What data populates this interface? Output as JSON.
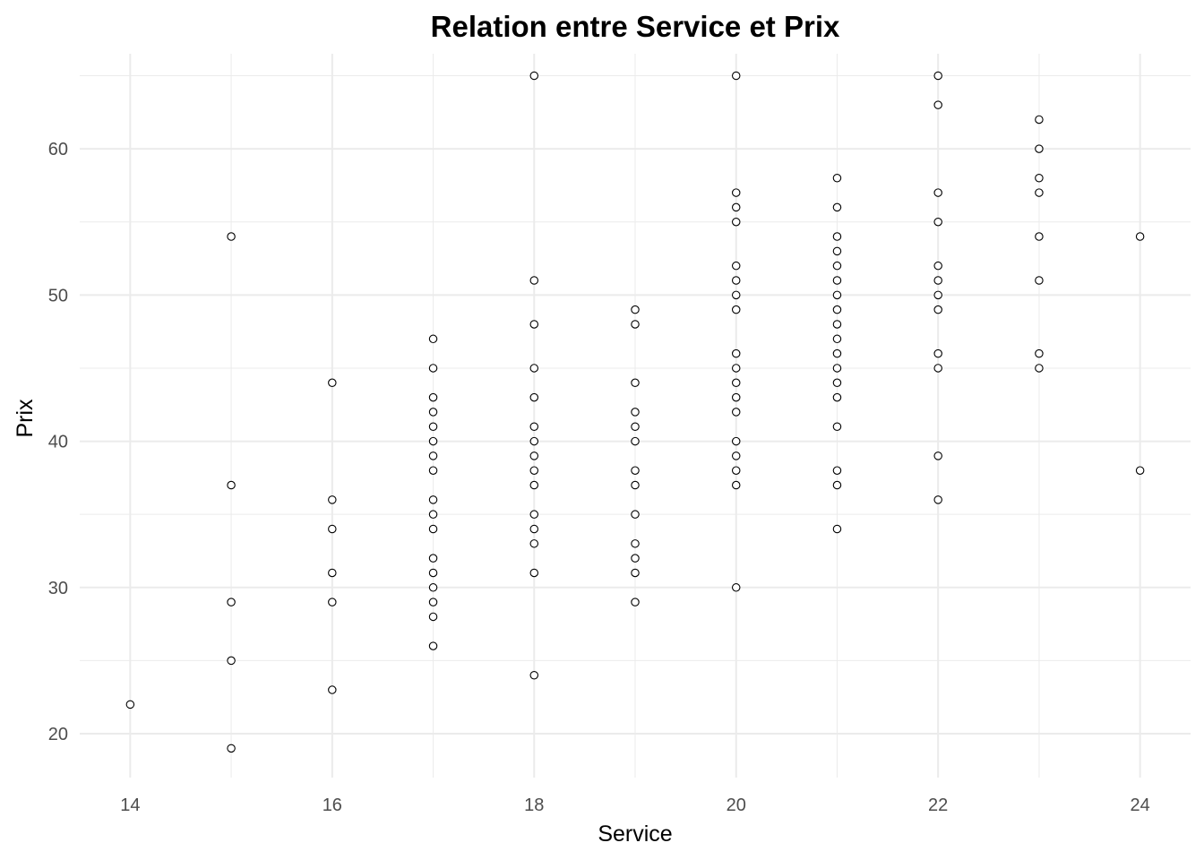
{
  "chart_data": {
    "type": "scatter",
    "title": "Relation entre Service et Prix",
    "xlabel": "Service",
    "ylabel": "Prix",
    "xlim": [
      13.5,
      24.5
    ],
    "ylim": [
      17,
      66.5
    ],
    "x_ticks": [
      14,
      16,
      18,
      20,
      22,
      24
    ],
    "y_ticks": [
      20,
      30,
      40,
      50,
      60
    ],
    "grid": true,
    "marker": "hollow-circle",
    "colors": {
      "marker_stroke": "#000000",
      "grid": "#ebebeb",
      "tick_text": "#4d4d4d"
    },
    "points": [
      {
        "x": 14,
        "y": 22
      },
      {
        "x": 15,
        "y": 54
      },
      {
        "x": 15,
        "y": 37
      },
      {
        "x": 15,
        "y": 29
      },
      {
        "x": 15,
        "y": 25
      },
      {
        "x": 15,
        "y": 19
      },
      {
        "x": 16,
        "y": 44
      },
      {
        "x": 16,
        "y": 36
      },
      {
        "x": 16,
        "y": 34
      },
      {
        "x": 16,
        "y": 31
      },
      {
        "x": 16,
        "y": 29
      },
      {
        "x": 16,
        "y": 23
      },
      {
        "x": 17,
        "y": 47
      },
      {
        "x": 17,
        "y": 45
      },
      {
        "x": 17,
        "y": 43
      },
      {
        "x": 17,
        "y": 42
      },
      {
        "x": 17,
        "y": 41
      },
      {
        "x": 17,
        "y": 40
      },
      {
        "x": 17,
        "y": 39
      },
      {
        "x": 17,
        "y": 38
      },
      {
        "x": 17,
        "y": 36
      },
      {
        "x": 17,
        "y": 35
      },
      {
        "x": 17,
        "y": 34
      },
      {
        "x": 17,
        "y": 32
      },
      {
        "x": 17,
        "y": 31
      },
      {
        "x": 17,
        "y": 30
      },
      {
        "x": 17,
        "y": 29
      },
      {
        "x": 17,
        "y": 28
      },
      {
        "x": 17,
        "y": 26
      },
      {
        "x": 18,
        "y": 65
      },
      {
        "x": 18,
        "y": 51
      },
      {
        "x": 18,
        "y": 48
      },
      {
        "x": 18,
        "y": 45
      },
      {
        "x": 18,
        "y": 43
      },
      {
        "x": 18,
        "y": 41
      },
      {
        "x": 18,
        "y": 40
      },
      {
        "x": 18,
        "y": 39
      },
      {
        "x": 18,
        "y": 38
      },
      {
        "x": 18,
        "y": 37
      },
      {
        "x": 18,
        "y": 35
      },
      {
        "x": 18,
        "y": 34
      },
      {
        "x": 18,
        "y": 33
      },
      {
        "x": 18,
        "y": 31
      },
      {
        "x": 18,
        "y": 24
      },
      {
        "x": 19,
        "y": 49
      },
      {
        "x": 19,
        "y": 48
      },
      {
        "x": 19,
        "y": 44
      },
      {
        "x": 19,
        "y": 42
      },
      {
        "x": 19,
        "y": 41
      },
      {
        "x": 19,
        "y": 40
      },
      {
        "x": 19,
        "y": 38
      },
      {
        "x": 19,
        "y": 37
      },
      {
        "x": 19,
        "y": 35
      },
      {
        "x": 19,
        "y": 33
      },
      {
        "x": 19,
        "y": 32
      },
      {
        "x": 19,
        "y": 31
      },
      {
        "x": 19,
        "y": 29
      },
      {
        "x": 20,
        "y": 65
      },
      {
        "x": 20,
        "y": 57
      },
      {
        "x": 20,
        "y": 56
      },
      {
        "x": 20,
        "y": 55
      },
      {
        "x": 20,
        "y": 52
      },
      {
        "x": 20,
        "y": 51
      },
      {
        "x": 20,
        "y": 50
      },
      {
        "x": 20,
        "y": 49
      },
      {
        "x": 20,
        "y": 46
      },
      {
        "x": 20,
        "y": 45
      },
      {
        "x": 20,
        "y": 44
      },
      {
        "x": 20,
        "y": 43
      },
      {
        "x": 20,
        "y": 42
      },
      {
        "x": 20,
        "y": 40
      },
      {
        "x": 20,
        "y": 39
      },
      {
        "x": 20,
        "y": 38
      },
      {
        "x": 20,
        "y": 37
      },
      {
        "x": 20,
        "y": 30
      },
      {
        "x": 21,
        "y": 58
      },
      {
        "x": 21,
        "y": 56
      },
      {
        "x": 21,
        "y": 54
      },
      {
        "x": 21,
        "y": 53
      },
      {
        "x": 21,
        "y": 52
      },
      {
        "x": 21,
        "y": 51
      },
      {
        "x": 21,
        "y": 50
      },
      {
        "x": 21,
        "y": 49
      },
      {
        "x": 21,
        "y": 48
      },
      {
        "x": 21,
        "y": 47
      },
      {
        "x": 21,
        "y": 46
      },
      {
        "x": 21,
        "y": 45
      },
      {
        "x": 21,
        "y": 44
      },
      {
        "x": 21,
        "y": 43
      },
      {
        "x": 21,
        "y": 41
      },
      {
        "x": 21,
        "y": 38
      },
      {
        "x": 21,
        "y": 37
      },
      {
        "x": 21,
        "y": 34
      },
      {
        "x": 22,
        "y": 65
      },
      {
        "x": 22,
        "y": 63
      },
      {
        "x": 22,
        "y": 57
      },
      {
        "x": 22,
        "y": 55
      },
      {
        "x": 22,
        "y": 52
      },
      {
        "x": 22,
        "y": 51
      },
      {
        "x": 22,
        "y": 50
      },
      {
        "x": 22,
        "y": 49
      },
      {
        "x": 22,
        "y": 46
      },
      {
        "x": 22,
        "y": 45
      },
      {
        "x": 22,
        "y": 39
      },
      {
        "x": 22,
        "y": 36
      },
      {
        "x": 23,
        "y": 62
      },
      {
        "x": 23,
        "y": 60
      },
      {
        "x": 23,
        "y": 58
      },
      {
        "x": 23,
        "y": 57
      },
      {
        "x": 23,
        "y": 54
      },
      {
        "x": 23,
        "y": 51
      },
      {
        "x": 23,
        "y": 46
      },
      {
        "x": 23,
        "y": 45
      },
      {
        "x": 24,
        "y": 54
      },
      {
        "x": 24,
        "y": 38
      }
    ]
  }
}
